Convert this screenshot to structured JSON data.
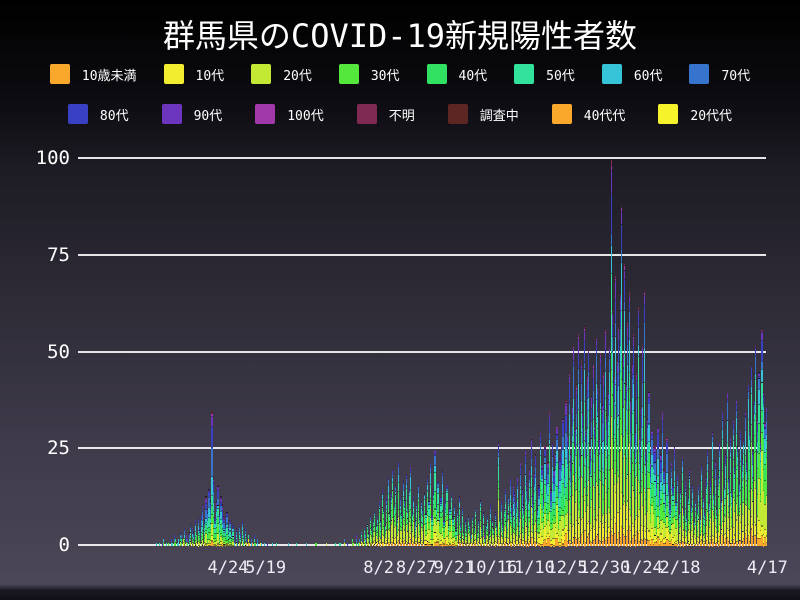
{
  "title": "群馬県のCOVID-19新規陽性者数",
  "chart_data": {
    "type": "bar",
    "variant": "stacked-daily",
    "title": "群馬県のCOVID-19新規陽性者数",
    "xlabel": "",
    "ylabel": "",
    "ylim": [
      0,
      100
    ],
    "grid": "horizontal",
    "legend_position": "top",
    "y_ticks": [
      {
        "label": "100",
        "value": 100
      },
      {
        "label": "75",
        "value": 75
      },
      {
        "label": "50",
        "value": 50
      },
      {
        "label": "25",
        "value": 25
      },
      {
        "label": "0",
        "value": 0
      }
    ],
    "x_ticks": [
      {
        "label": "4/24",
        "day": 54
      },
      {
        "label": "5/19",
        "day": 79
      },
      {
        "label": "8/2",
        "day": 154
      },
      {
        "label": "8/27",
        "day": 179
      },
      {
        "label": "9/21",
        "day": 204
      },
      {
        "label": "10/16",
        "day": 229
      },
      {
        "label": "11/10",
        "day": 254
      },
      {
        "label": "12/5",
        "day": 279
      },
      {
        "label": "12/30",
        "day": 304
      },
      {
        "label": "1/24",
        "day": 329
      },
      {
        "label": "2/18",
        "day": 354
      },
      {
        "label": "4/17",
        "day": 412
      }
    ],
    "groups": [
      {
        "label": "10歳未満",
        "color": "#f9a82c"
      },
      {
        "label": "10代",
        "color": "#f2ee2f"
      },
      {
        "label": "20代",
        "color": "#c3e934"
      },
      {
        "label": "30代",
        "color": "#55e83c"
      },
      {
        "label": "40代",
        "color": "#31e162"
      },
      {
        "label": "50代",
        "color": "#31e29c"
      },
      {
        "label": "60代",
        "color": "#35c3d8"
      },
      {
        "label": "70代",
        "color": "#3674cd"
      },
      {
        "label": "80代",
        "color": "#3a40c4"
      },
      {
        "label": "90代",
        "color": "#6c35be"
      },
      {
        "label": "100代",
        "color": "#a139ab"
      },
      {
        "label": "不明",
        "color": "#7e2a52"
      },
      {
        "label": "調査中",
        "color": "#5e2622"
      },
      {
        "label": "40代代",
        "color": "#f9a82c"
      },
      {
        "label": "20代代",
        "color": "#f7f32b"
      }
    ],
    "legend_split": [
      8,
      7
    ],
    "start_date": "2020-03-01",
    "end_date": "2021-04-16",
    "daily_totals": [
      0,
      0,
      0,
      0,
      0,
      0,
      1,
      0,
      1,
      0,
      1,
      2,
      0,
      1,
      1,
      0,
      2,
      1,
      3,
      2,
      1,
      2,
      4,
      3,
      2,
      5,
      3,
      2,
      4,
      6,
      5,
      4,
      7,
      3,
      8,
      5,
      9,
      11,
      7,
      13,
      10,
      15,
      12,
      35,
      18,
      8,
      12,
      16,
      9,
      13,
      11,
      8,
      6,
      9,
      5,
      7,
      4,
      6,
      3,
      5,
      2,
      6,
      4,
      7,
      3,
      5,
      2,
      3,
      1,
      2,
      1,
      3,
      1,
      2,
      0,
      1,
      1,
      0,
      1,
      0,
      1,
      0,
      0,
      1,
      0,
      0,
      1,
      0,
      0,
      0,
      0,
      0,
      0,
      0,
      1,
      0,
      0,
      0,
      0,
      1,
      0,
      0,
      0,
      0,
      0,
      0,
      1,
      0,
      0,
      0,
      0,
      0,
      1,
      0,
      0,
      0,
      0,
      0,
      0,
      1,
      0,
      0,
      0,
      0,
      0,
      1,
      0,
      0,
      1,
      0,
      0,
      2,
      0,
      1,
      0,
      0,
      2,
      1,
      0,
      3,
      1,
      2,
      4,
      2,
      5,
      3,
      6,
      4,
      8,
      5,
      7,
      9,
      6,
      8,
      12,
      7,
      15,
      10,
      6,
      13,
      18,
      9,
      14,
      20,
      11,
      16,
      8,
      22,
      13,
      9,
      17,
      12,
      19,
      10,
      15,
      21,
      9,
      13,
      7,
      11,
      16,
      8,
      12,
      10,
      14,
      9,
      18,
      12,
      22,
      8,
      15,
      25,
      11,
      17,
      9,
      13,
      20,
      7,
      12,
      16,
      6,
      10,
      14,
      8,
      11,
      5,
      9,
      13,
      6,
      10,
      4,
      7,
      5,
      8,
      6,
      3,
      8,
      5,
      10,
      4,
      7,
      12,
      5,
      9,
      3,
      6,
      8,
      4,
      11,
      7,
      5,
      9,
      6,
      27,
      8,
      12,
      6,
      10,
      15,
      9,
      13,
      18,
      11,
      16,
      14,
      12,
      18,
      9,
      22,
      15,
      11,
      25,
      17,
      13,
      20,
      28,
      14,
      19,
      24,
      10,
      16,
      30,
      21,
      13,
      26,
      18,
      22,
      35,
      15,
      27,
      20,
      24,
      31,
      17,
      23,
      26,
      33,
      21,
      38,
      29,
      45,
      24,
      36,
      52,
      31,
      42,
      55,
      27,
      48,
      35,
      57,
      30,
      44,
      51,
      25,
      39,
      47,
      32,
      54,
      41,
      28,
      50,
      37,
      45,
      56,
      34,
      40,
      52,
      100,
      61,
      44,
      70,
      48,
      57,
      65,
      88,
      50,
      73,
      42,
      58,
      66,
      38,
      47,
      55,
      30,
      45,
      62,
      28,
      36,
      52,
      66,
      25,
      33,
      40,
      22,
      30,
      26,
      26,
      18,
      31,
      15,
      24,
      35,
      20,
      14,
      28,
      17,
      11,
      22,
      16,
      26,
      12,
      19,
      9,
      15,
      23,
      10,
      17,
      8,
      13,
      20,
      11,
      16,
      7,
      12,
      10,
      16,
      8,
      21,
      13,
      9,
      18,
      25,
      12,
      17,
      30,
      14,
      22,
      10,
      19,
      27,
      13,
      35,
      16,
      24,
      40,
      18,
      28,
      15,
      33,
      21,
      38,
      26,
      17,
      30,
      23,
      28,
      35,
      22,
      42,
      30,
      47,
      25,
      38,
      52,
      33,
      45,
      27,
      56,
      40,
      32,
      36
    ],
    "age_share_profiles": [
      {
        "until_day": 121,
        "shares": [
          0.02,
          0.03,
          0.12,
          0.11,
          0.12,
          0.14,
          0.15,
          0.13,
          0.09,
          0.05,
          0.01,
          0.02,
          0.01,
          0,
          0
        ]
      },
      {
        "until_day": 240,
        "shares": [
          0.05,
          0.08,
          0.24,
          0.16,
          0.14,
          0.12,
          0.08,
          0.06,
          0.04,
          0.02,
          0.005,
          0.005,
          0,
          0,
          0
        ]
      },
      {
        "until_day": 350,
        "shares": [
          0.05,
          0.08,
          0.16,
          0.13,
          0.13,
          0.12,
          0.1,
          0.09,
          0.08,
          0.04,
          0.01,
          0.01,
          0,
          0,
          0
        ]
      },
      {
        "until_day": 9999,
        "shares": [
          0.06,
          0.1,
          0.21,
          0.15,
          0.14,
          0.12,
          0.09,
          0.06,
          0.04,
          0.02,
          0.005,
          0.005,
          0,
          0,
          0
        ]
      }
    ]
  }
}
